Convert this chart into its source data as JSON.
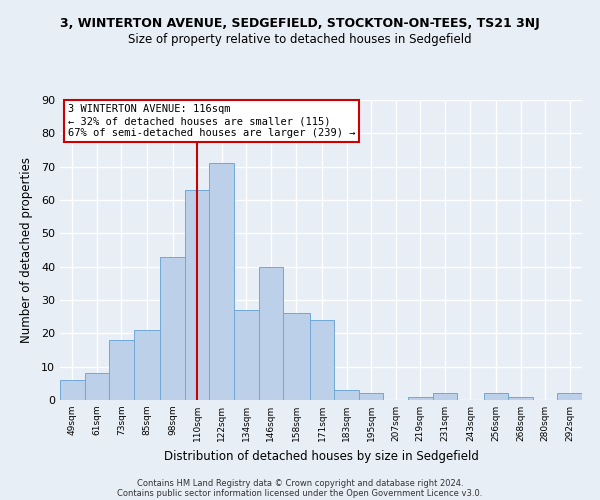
{
  "title": "3, WINTERTON AVENUE, SEDGEFIELD, STOCKTON-ON-TEES, TS21 3NJ",
  "subtitle": "Size of property relative to detached houses in Sedgefield",
  "xlabel": "Distribution of detached houses by size in Sedgefield",
  "ylabel": "Number of detached properties",
  "bar_labels": [
    "49sqm",
    "61sqm",
    "73sqm",
    "85sqm",
    "98sqm",
    "110sqm",
    "122sqm",
    "134sqm",
    "146sqm",
    "158sqm",
    "171sqm",
    "183sqm",
    "195sqm",
    "207sqm",
    "219sqm",
    "231sqm",
    "243sqm",
    "256sqm",
    "268sqm",
    "280sqm",
    "292sqm"
  ],
  "bar_heights": [
    6,
    8,
    18,
    21,
    43,
    63,
    71,
    27,
    40,
    26,
    24,
    3,
    2,
    0,
    1,
    2,
    0,
    2,
    1,
    0,
    2
  ],
  "bar_color": "#bdd0e9",
  "bar_edge_color": "#6fa8d6",
  "background_color": "#e8eef6",
  "annotation_box_text": "3 WINTERTON AVENUE: 116sqm\n← 32% of detached houses are smaller (115)\n67% of semi-detached houses are larger (239) →",
  "annotation_box_color": "white",
  "annotation_box_edge_color": "#cc0000",
  "vline_color": "#cc0000",
  "ylim": [
    0,
    90
  ],
  "yticks": [
    0,
    10,
    20,
    30,
    40,
    50,
    60,
    70,
    80,
    90
  ],
  "footer_line1": "Contains HM Land Registry data © Crown copyright and database right 2024.",
  "footer_line2": "Contains public sector information licensed under the Open Government Licence v3.0.",
  "bin_edges": [
    49,
    61,
    73,
    85,
    98,
    110,
    122,
    134,
    146,
    158,
    171,
    183,
    195,
    207,
    219,
    231,
    243,
    256,
    268,
    280,
    292,
    304
  ]
}
